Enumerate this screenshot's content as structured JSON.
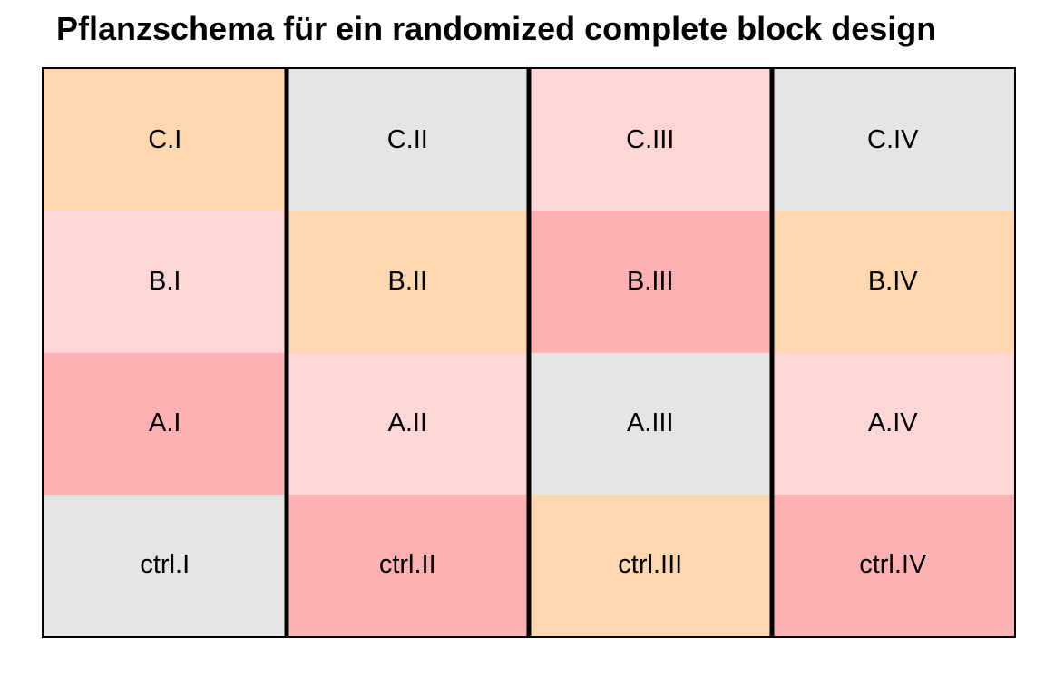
{
  "title": "Pflanzschema für ein randomized complete block design",
  "colors": {
    "peach": "#fed6b0",
    "grey": "#e5e5e5",
    "light_pink": "#fed6d8",
    "salmon": "#feb0b2",
    "border": "#000000"
  },
  "blocks": [
    "I",
    "II",
    "III",
    "IV"
  ],
  "rows": [
    {
      "cells": [
        {
          "label": "C.I",
          "color": "#fed6b0"
        },
        {
          "label": "C.II",
          "color": "#e5e5e5"
        },
        {
          "label": "C.III",
          "color": "#fed6d8"
        },
        {
          "label": "C.IV",
          "color": "#e5e5e5"
        }
      ]
    },
    {
      "cells": [
        {
          "label": "B.I",
          "color": "#fed6d8"
        },
        {
          "label": "B.II",
          "color": "#fed6b0"
        },
        {
          "label": "B.III",
          "color": "#feb0b2"
        },
        {
          "label": "B.IV",
          "color": "#fed6b0"
        }
      ]
    },
    {
      "cells": [
        {
          "label": "A.I",
          "color": "#feb0b2"
        },
        {
          "label": "A.II",
          "color": "#fed6d8"
        },
        {
          "label": "A.III",
          "color": "#e5e5e5"
        },
        {
          "label": "A.IV",
          "color": "#fed6d8"
        }
      ]
    },
    {
      "cells": [
        {
          "label": "ctrl.I",
          "color": "#e5e5e5"
        },
        {
          "label": "ctrl.II",
          "color": "#feb0b2"
        },
        {
          "label": "ctrl.III",
          "color": "#fed6b0"
        },
        {
          "label": "ctrl.IV",
          "color": "#feb0b2"
        }
      ]
    }
  ]
}
